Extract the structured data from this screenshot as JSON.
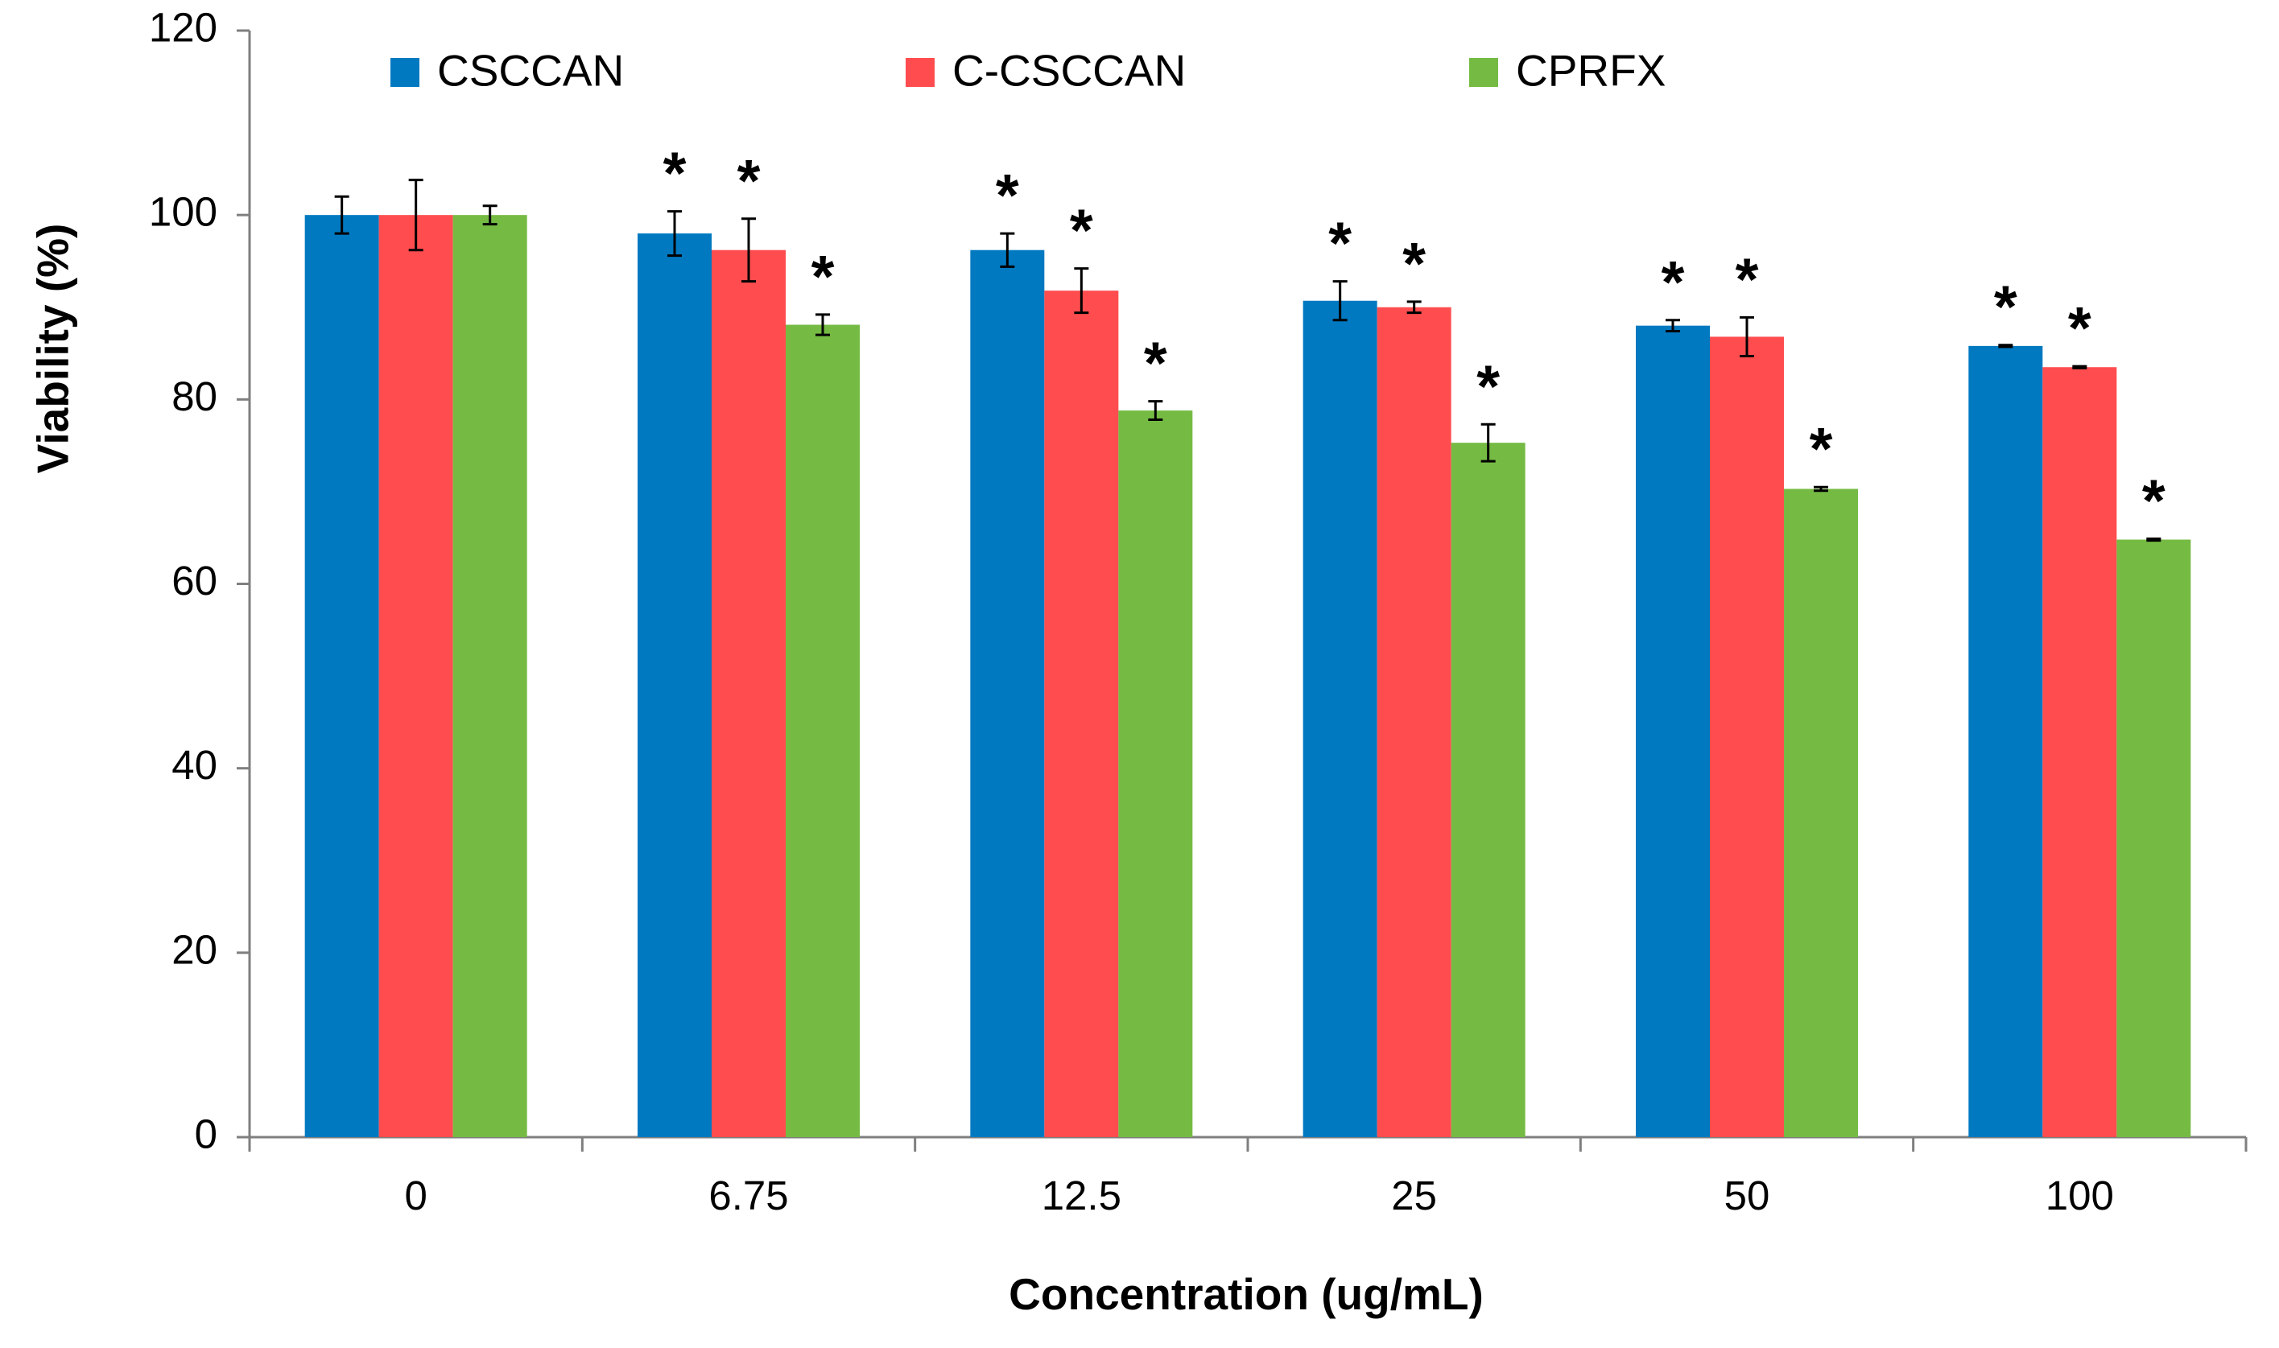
{
  "chart_data": {
    "type": "bar",
    "xlabel": "Concentration (ug/mL)",
    "ylabel": "Viability (%)",
    "ylim": [
      0,
      120
    ],
    "yticks": [
      "0",
      "20",
      "40",
      "60",
      "80",
      "100",
      "120"
    ],
    "categories": [
      "0",
      "6.75",
      "12.5",
      "25",
      "50",
      "100"
    ],
    "series": [
      {
        "name": "CSCCAN",
        "color": "#0079C1",
        "values": [
          100,
          98,
          96.2,
          90.7,
          88,
          85.8
        ],
        "errors": [
          2,
          2.4,
          1.8,
          2.1,
          0.6,
          0.1
        ],
        "significant": [
          "",
          "*",
          "*",
          "*",
          "*",
          "*"
        ]
      },
      {
        "name": "C-CSCCAN",
        "color": "#FF4D4F",
        "values": [
          100,
          96.2,
          91.8,
          90,
          86.8,
          83.5
        ],
        "errors": [
          3.8,
          3.4,
          2.4,
          0.6,
          2.1,
          0.1
        ],
        "significant": [
          "",
          "*",
          "*",
          "*",
          "*",
          "*"
        ]
      },
      {
        "name": "CPRFX",
        "color": "#75BB43",
        "values": [
          100,
          88.1,
          78.8,
          75.3,
          70.3,
          64.8
        ],
        "errors": [
          1,
          1.1,
          1,
          2,
          0.2,
          0.1
        ],
        "significant": [
          "",
          "*",
          "*",
          "*",
          "*",
          "*"
        ]
      }
    ],
    "legend_position": "top",
    "grid": false
  }
}
